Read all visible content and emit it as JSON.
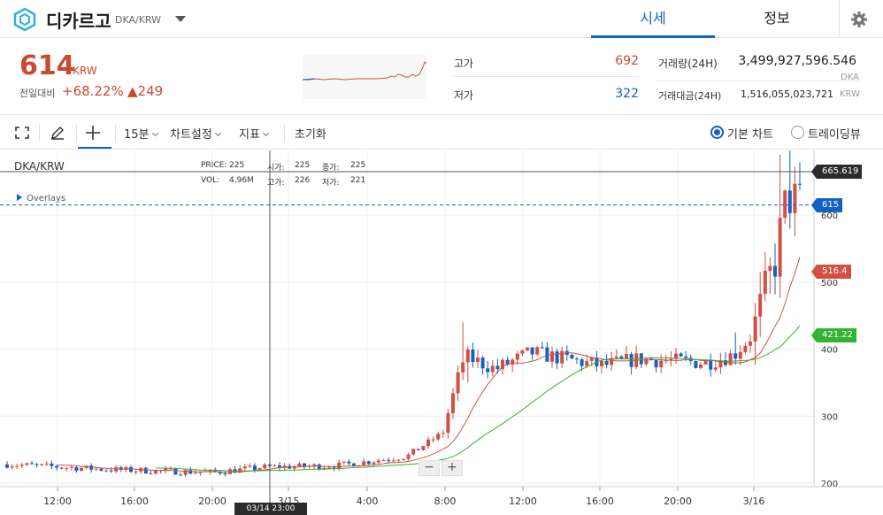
{
  "header": {
    "coin_name": "디카르고",
    "pair": "DKA/KRW",
    "tabs": [
      {
        "label": "시세",
        "active": true
      },
      {
        "label": "정보",
        "active": false
      }
    ],
    "logo_icon": "dicargo-logo-icon",
    "settings_icon": "gear-icon"
  },
  "ticker": {
    "price": "614",
    "unit": "KRW",
    "change_label": "전일대비",
    "change_rate": "+68.22%",
    "change_amount": "▲249",
    "high_label": "고가",
    "high": "692",
    "low_label": "저가",
    "low": "322",
    "volume_label": "거래량(24H)",
    "volume": "3,499,927,596.546",
    "volume_unit": "DKA",
    "turnover_label": "거래대금(24H)",
    "turnover": "1,516,055,023,721",
    "turnover_unit": "KRW",
    "colors": {
      "up": "#c84a31",
      "down": "#1261c4"
    }
  },
  "toolbar": {
    "interval": "15분",
    "chart_settings": "차트설정",
    "indicators": "지표",
    "reset": "초기화",
    "basic_chart": "기본 차트",
    "tradingview": "트레이딩뷰",
    "selected_view": "기본 차트"
  },
  "chart_overlay": {
    "title": "DKA/KRW",
    "overlays": "Overlays",
    "price_label": "PRICE:",
    "price": "225",
    "open_label": "시가:",
    "open": "225",
    "close_label": "종가:",
    "close": "225",
    "vol_label": "VOL:",
    "vol": "4.96M",
    "high_label": "고가:",
    "high": "226",
    "low_label": "저가:",
    "low": "221",
    "zoom_out": "−",
    "zoom_in": "+",
    "crosshair_price": "665.619",
    "crosshair_time": "03/14 23:00",
    "last_price_tag": "615",
    "ma_tag_1": "516.4",
    "ma_tag_2": "421.22"
  },
  "chart_data": {
    "type": "candlestick",
    "x_ticks": [
      "12:00",
      "16:00",
      "20:00",
      "3/15",
      "4:00",
      "8:00",
      "12:00",
      "16:00",
      "20:00",
      "3/16"
    ],
    "y_ticks": [
      200,
      300,
      400,
      500,
      600
    ],
    "ylim": [
      195,
      700
    ],
    "colors": {
      "up": "#d24f45",
      "down": "#1261c4",
      "ma_short": "#d24f45",
      "ma_long": "#34b233"
    },
    "last_price": 615,
    "ma_short_last": 516.4,
    "ma_long_last": 421.22
  }
}
